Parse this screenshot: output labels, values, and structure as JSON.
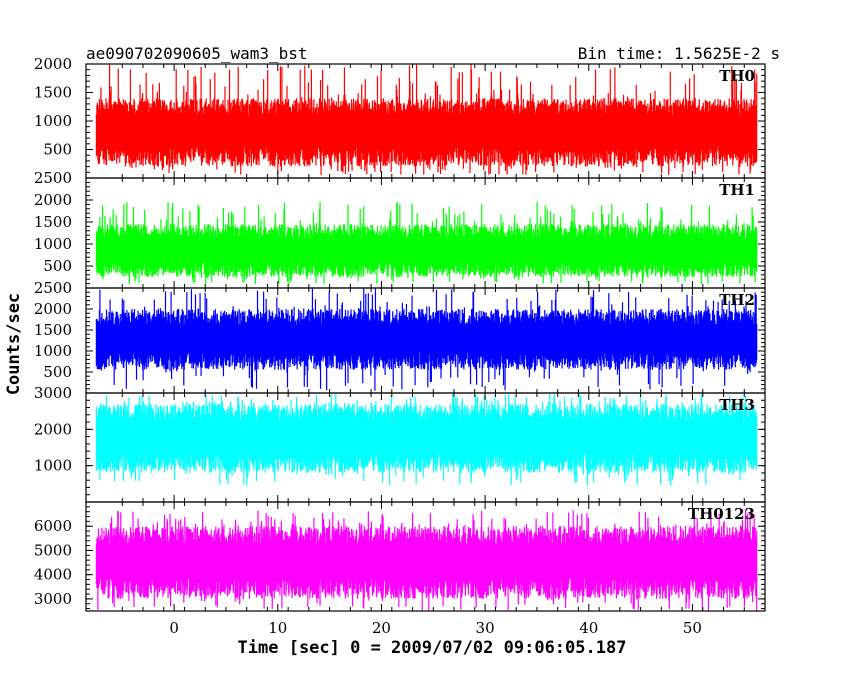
{
  "chart_data": {
    "type": "line",
    "title": "ae090702090605_wam3_bst",
    "subtitle": "Bin time: 1.5625E-2 s",
    "xlabel": "Time [sec] 0 = 2009/07/02 09:06:05.187",
    "ylabel": "Counts/sec",
    "xlim": [
      -8.5,
      57
    ],
    "x_ticks": [
      0,
      10,
      20,
      30,
      40,
      50
    ],
    "data_x_range": [
      -7.5,
      56.2
    ],
    "bin_time": 0.015625,
    "panels": [
      {
        "name": "TH0",
        "color": "#ff0000",
        "ylim": [
          0,
          2000
        ],
        "y_ticks": [
          500,
          1000,
          1500,
          2000
        ],
        "series": {
          "name": "TH0",
          "mean": 850,
          "typical_min": 200,
          "typical_max": 1400,
          "peak_max": 2000,
          "floor_min": 50
        }
      },
      {
        "name": "TH1",
        "color": "#00ff00",
        "ylim": [
          0,
          2500
        ],
        "y_ticks": [
          500,
          1000,
          1500,
          2000,
          2500
        ],
        "series": {
          "name": "TH1",
          "mean": 850,
          "typical_min": 250,
          "typical_max": 1450,
          "peak_max": 2000,
          "floor_min": 80
        }
      },
      {
        "name": "TH2",
        "color": "#0000ff",
        "ylim": [
          0,
          2500
        ],
        "y_ticks": [
          500,
          1000,
          1500,
          2000,
          2500
        ],
        "series": {
          "name": "TH2",
          "mean": 1300,
          "typical_min": 550,
          "typical_max": 2000,
          "peak_max": 2500,
          "floor_min": 50
        }
      },
      {
        "name": "TH3",
        "color": "#00ffff",
        "ylim": [
          0,
          3000
        ],
        "y_ticks": [
          1000,
          2000,
          3000
        ],
        "series": {
          "name": "TH3",
          "mean": 1800,
          "typical_min": 800,
          "typical_max": 2700,
          "peak_max": 3000,
          "floor_min": 450
        }
      },
      {
        "name": "TH0123",
        "color": "#ff00ff",
        "ylim": [
          2500,
          7000
        ],
        "y_ticks": [
          3000,
          4000,
          5000,
          6000
        ],
        "series": {
          "name": "TH0123",
          "mean": 4600,
          "typical_min": 3000,
          "typical_max": 6000,
          "peak_max": 6700,
          "floor_min": 2500
        }
      }
    ],
    "grid": false
  }
}
